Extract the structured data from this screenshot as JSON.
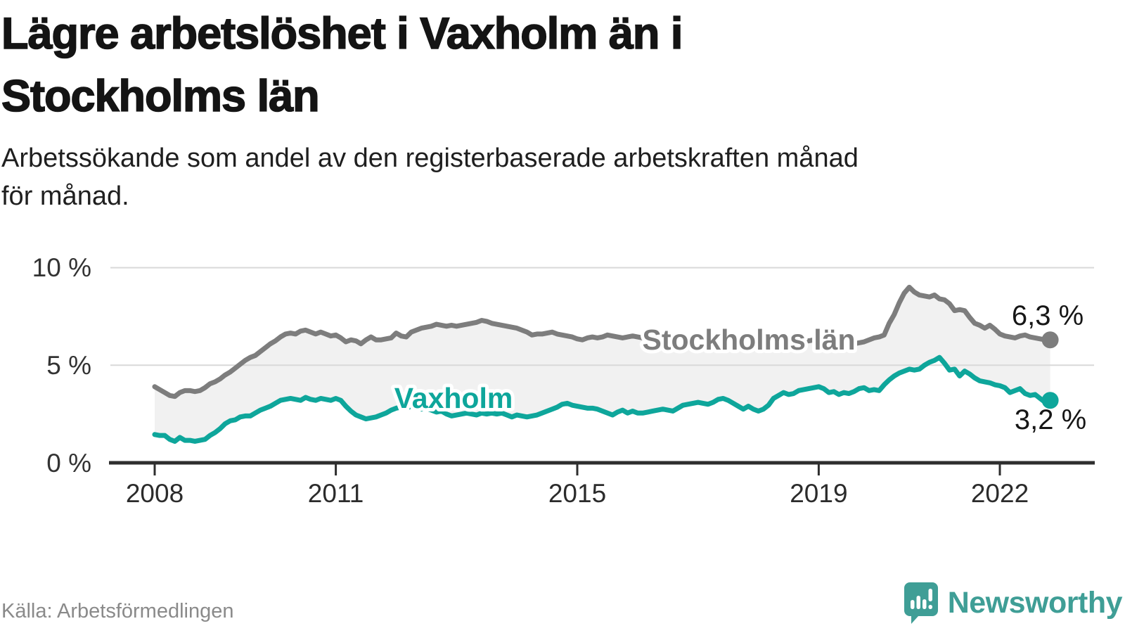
{
  "header": {
    "title_lines": [
      "Lägre arbetslöshet i Vaxholm än i",
      "Stockholms län"
    ],
    "subtitle_lines": [
      "Arbetssökande som andel av den registerbaserade arbetskraften månad",
      "för månad."
    ]
  },
  "chart_data": {
    "type": "line",
    "title": "Lägre arbetslöshet i Vaxholm än i Stockholms län",
    "subtitle": "Arbetssökande som andel av den registerbaserade arbetskraften månad för månad.",
    "unit": "%",
    "frequency": "monthly",
    "x_start": "2008-01",
    "x_end": "2022-11",
    "ylim": [
      0,
      10.3
    ],
    "grid": "horizontal",
    "band_fill": "#f1f1f1",
    "y_ticks": [
      {
        "value": 10,
        "label": "10 %"
      },
      {
        "value": 5,
        "label": "5 %"
      },
      {
        "value": 0,
        "label": "0 %"
      }
    ],
    "x_ticks": [
      {
        "year": 2008,
        "label": "2008"
      },
      {
        "year": 2011,
        "label": "2011"
      },
      {
        "year": 2015,
        "label": "2015"
      },
      {
        "year": 2019,
        "label": "2019"
      },
      {
        "year": 2022,
        "label": "2022"
      }
    ],
    "series": [
      {
        "name": "Stockholms län",
        "color": "#7d7d7d",
        "end_label": "6,3 %",
        "end_value": 6.3,
        "values": [
          3.9,
          3.75,
          3.6,
          3.45,
          3.4,
          3.6,
          3.7,
          3.7,
          3.65,
          3.7,
          3.85,
          4.05,
          4.15,
          4.3,
          4.5,
          4.65,
          4.85,
          5.05,
          5.25,
          5.4,
          5.5,
          5.7,
          5.9,
          6.1,
          6.25,
          6.45,
          6.6,
          6.65,
          6.6,
          6.75,
          6.8,
          6.7,
          6.6,
          6.7,
          6.6,
          6.5,
          6.55,
          6.4,
          6.2,
          6.3,
          6.25,
          6.1,
          6.3,
          6.45,
          6.3,
          6.3,
          6.35,
          6.4,
          6.65,
          6.5,
          6.45,
          6.7,
          6.8,
          6.9,
          6.95,
          7.0,
          7.1,
          7.05,
          7.0,
          7.05,
          7.0,
          7.05,
          7.1,
          7.15,
          7.2,
          7.3,
          7.25,
          7.15,
          7.1,
          7.05,
          7.0,
          6.95,
          6.9,
          6.8,
          6.7,
          6.55,
          6.6,
          6.6,
          6.65,
          6.7,
          6.6,
          6.55,
          6.5,
          6.45,
          6.35,
          6.3,
          6.4,
          6.45,
          6.4,
          6.45,
          6.55,
          6.5,
          6.45,
          6.4,
          6.45,
          6.5,
          6.45,
          6.4,
          6.45,
          6.5,
          6.45,
          6.4,
          6.35,
          6.4,
          6.45,
          6.4,
          6.35,
          6.4,
          6.35,
          6.3,
          6.35,
          6.4,
          6.35,
          6.3,
          6.35,
          6.3,
          6.25,
          6.3,
          6.35,
          6.3,
          6.35,
          6.3,
          6.25,
          6.3,
          6.35,
          6.3,
          6.25,
          6.2,
          6.25,
          6.3,
          6.25,
          6.3,
          6.35,
          6.3,
          6.25,
          6.2,
          6.15,
          6.2,
          6.15,
          6.1,
          6.15,
          6.2,
          6.3,
          6.4,
          6.45,
          6.55,
          7.15,
          7.6,
          8.2,
          8.7,
          9.0,
          8.75,
          8.6,
          8.55,
          8.5,
          8.6,
          8.4,
          8.35,
          8.15,
          7.8,
          7.85,
          7.8,
          7.45,
          7.15,
          7.05,
          6.9,
          7.05,
          6.85,
          6.6,
          6.5,
          6.45,
          6.4,
          6.5,
          6.55,
          6.45,
          6.4,
          6.35,
          6.3,
          6.3
        ]
      },
      {
        "name": "Vaxholm",
        "color": "#0ea69b",
        "end_label": "3,2 %",
        "end_value": 3.2,
        "values": [
          1.45,
          1.4,
          1.4,
          1.2,
          1.1,
          1.3,
          1.15,
          1.15,
          1.1,
          1.15,
          1.2,
          1.4,
          1.55,
          1.75,
          2.0,
          2.15,
          2.2,
          2.35,
          2.4,
          2.4,
          2.55,
          2.7,
          2.8,
          2.9,
          3.05,
          3.2,
          3.25,
          3.3,
          3.25,
          3.2,
          3.35,
          3.25,
          3.2,
          3.3,
          3.25,
          3.2,
          3.3,
          3.2,
          2.9,
          2.65,
          2.45,
          2.35,
          2.25,
          2.3,
          2.35,
          2.45,
          2.55,
          2.7,
          2.8,
          2.85,
          2.8,
          2.9,
          2.85,
          2.75,
          2.8,
          2.7,
          2.6,
          2.65,
          2.5,
          2.4,
          2.45,
          2.5,
          2.55,
          2.5,
          2.45,
          2.55,
          2.5,
          2.55,
          2.5,
          2.55,
          2.45,
          2.35,
          2.45,
          2.4,
          2.35,
          2.4,
          2.45,
          2.55,
          2.65,
          2.75,
          2.85,
          3.0,
          3.05,
          2.95,
          2.9,
          2.85,
          2.8,
          2.8,
          2.75,
          2.65,
          2.55,
          2.45,
          2.6,
          2.7,
          2.55,
          2.65,
          2.55,
          2.55,
          2.6,
          2.65,
          2.7,
          2.75,
          2.7,
          2.65,
          2.8,
          2.95,
          3.0,
          3.05,
          3.1,
          3.05,
          3.0,
          3.1,
          3.25,
          3.3,
          3.2,
          3.05,
          2.9,
          2.75,
          2.9,
          2.75,
          2.65,
          2.75,
          2.95,
          3.3,
          3.45,
          3.6,
          3.5,
          3.55,
          3.7,
          3.75,
          3.8,
          3.85,
          3.9,
          3.8,
          3.6,
          3.65,
          3.5,
          3.6,
          3.55,
          3.65,
          3.8,
          3.85,
          3.7,
          3.75,
          3.7,
          4.0,
          4.25,
          4.45,
          4.6,
          4.7,
          4.8,
          4.75,
          4.8,
          5.0,
          5.15,
          5.25,
          5.4,
          5.1,
          4.75,
          4.8,
          4.45,
          4.7,
          4.55,
          4.35,
          4.2,
          4.15,
          4.1,
          4.0,
          3.95,
          3.85,
          3.6,
          3.7,
          3.8,
          3.55,
          3.45,
          3.5,
          3.3,
          3.1,
          3.2
        ]
      }
    ]
  },
  "footer": {
    "source": "Källa: Arbetsförmedlingen",
    "brand": "Newsworthy",
    "brand_color": "#3f9e96"
  }
}
